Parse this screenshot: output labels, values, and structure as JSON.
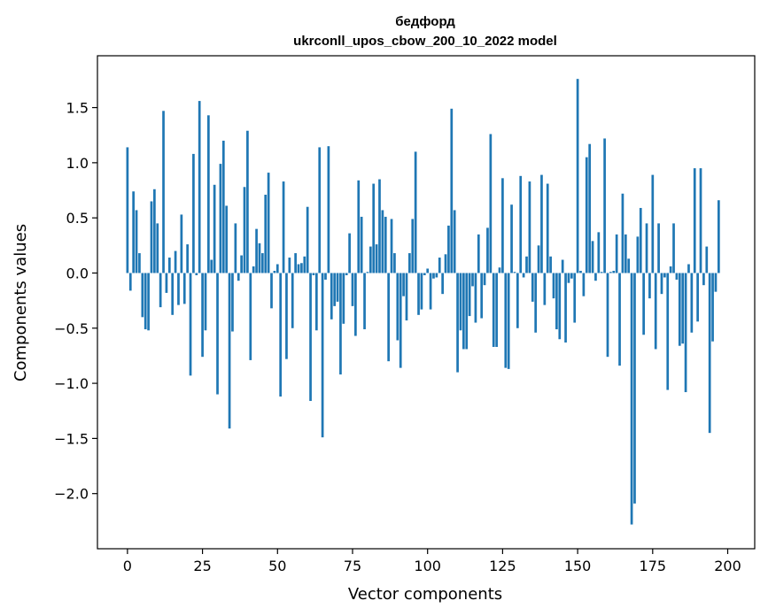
{
  "chart_data": {
    "type": "bar",
    "title": "бедфорд",
    "subtitle": "ukrconll_upos_cbow_200_10_2022 model",
    "xlabel": "Vector components",
    "ylabel": "Components values",
    "xlim": [
      -10,
      209
    ],
    "ylim": [
      -2.5,
      1.97
    ],
    "xticks": [
      0,
      25,
      50,
      75,
      100,
      125,
      150,
      175,
      200
    ],
    "yticks": [
      -2.0,
      -1.5,
      -1.0,
      -0.5,
      0.0,
      0.5,
      1.0,
      1.5
    ],
    "ytick_labels": [
      "−2.0",
      "−1.5",
      "−1.0",
      "−0.5",
      "0.0",
      "0.5",
      "1.0",
      "1.5"
    ],
    "bar_color": "#1f77b4",
    "values": [
      1.14,
      -0.16,
      0.74,
      0.57,
      0.18,
      -0.4,
      -0.51,
      -0.52,
      0.65,
      0.76,
      0.45,
      -0.31,
      1.47,
      -0.18,
      0.14,
      -0.38,
      0.2,
      -0.29,
      0.53,
      -0.28,
      0.26,
      -0.93,
      1.08,
      -0.02,
      1.56,
      -0.76,
      -0.52,
      1.43,
      0.12,
      0.8,
      -1.1,
      0.99,
      1.2,
      0.61,
      -1.41,
      -0.53,
      0.45,
      -0.07,
      0.16,
      0.78,
      1.29,
      -0.79,
      0.06,
      0.4,
      0.27,
      0.18,
      0.71,
      0.91,
      -0.32,
      0.02,
      0.08,
      -1.12,
      0.83,
      -0.78,
      0.14,
      -0.5,
      0.18,
      0.08,
      0.09,
      0.15,
      0.6,
      -1.16,
      -0.02,
      -0.52,
      1.14,
      -1.49,
      -0.06,
      1.15,
      -0.42,
      -0.3,
      -0.26,
      -0.92,
      -0.46,
      -0.02,
      0.36,
      -0.3,
      -0.57,
      0.84,
      0.51,
      -0.51,
      0.01,
      0.24,
      0.81,
      0.26,
      0.85,
      0.57,
      0.51,
      -0.8,
      0.49,
      0.18,
      -0.61,
      -0.86,
      -0.21,
      -0.43,
      0.18,
      0.49,
      1.1,
      -0.38,
      -0.33,
      -0.02,
      0.04,
      -0.33,
      -0.05,
      -0.04,
      0.14,
      -0.19,
      0.17,
      0.43,
      1.49,
      0.57,
      -0.9,
      -0.52,
      -0.69,
      -0.69,
      -0.39,
      -0.12,
      -0.45,
      0.35,
      -0.41,
      -0.11,
      0.41,
      1.26,
      -0.67,
      -0.67,
      0.05,
      0.86,
      -0.86,
      -0.87,
      0.62,
      0.01,
      -0.5,
      0.88,
      -0.04,
      0.15,
      0.83,
      -0.26,
      -0.54,
      0.25,
      0.89,
      -0.29,
      0.81,
      0.15,
      -0.23,
      -0.51,
      -0.6,
      0.12,
      -0.63,
      -0.09,
      -0.05,
      -0.45,
      1.76,
      0.02,
      -0.21,
      1.05,
      1.17,
      0.29,
      -0.07,
      0.37,
      0.01,
      1.22,
      -0.76,
      0.01,
      0.02,
      0.35,
      -0.84,
      0.72,
      0.35,
      0.13,
      -2.28,
      -2.09,
      0.33,
      0.59,
      -0.56,
      0.45,
      -0.23,
      0.89,
      -0.69,
      0.45,
      -0.19,
      -0.04,
      -1.06,
      0.06,
      0.45,
      -0.06,
      -0.66,
      -0.64,
      -1.08,
      0.08,
      -0.54,
      0.95,
      -0.44,
      0.95,
      -0.11,
      0.24,
      -1.45,
      -0.62,
      -0.17,
      0.66
    ]
  }
}
